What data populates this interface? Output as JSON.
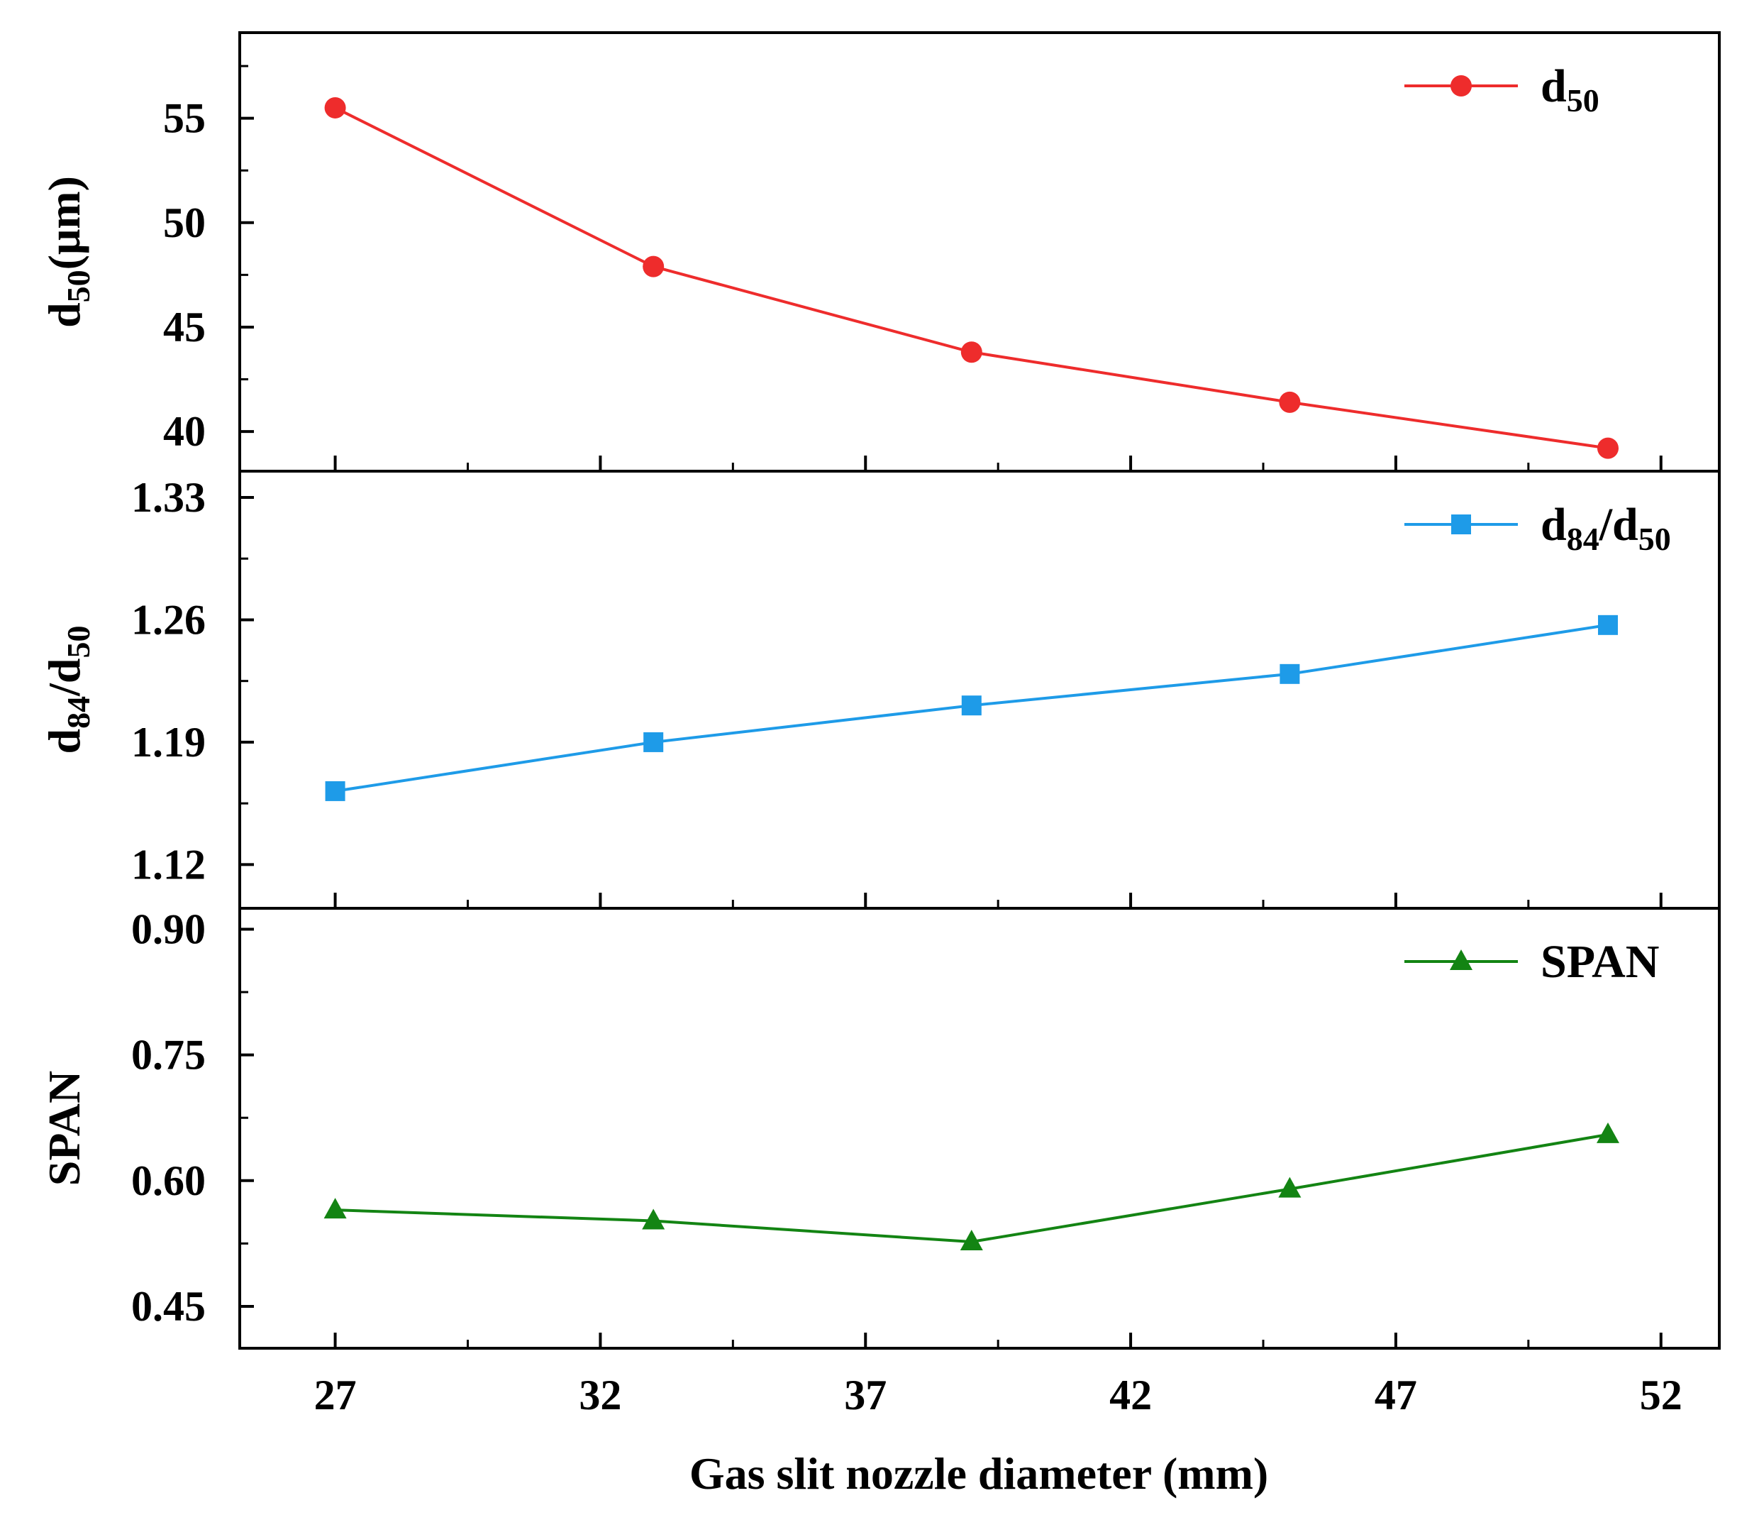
{
  "chart_data": {
    "type": "line",
    "xlabel": "Gas slit nozzle diameter (mm)",
    "x": [
      27,
      33,
      39,
      45,
      51
    ],
    "xlim": [
      25.2,
      53.1
    ],
    "x_ticks": [
      "27",
      "32",
      "37",
      "42",
      "47",
      "52"
    ],
    "x_tick_values": [
      27,
      32,
      37,
      42,
      47,
      52
    ],
    "grid": false,
    "panels": [
      {
        "id": "d50",
        "ylabel_main": "d",
        "ylabel_sub": "50",
        "ylabel_suffix": "(μm)",
        "ylim": [
          38.1,
          59.1
        ],
        "y_ticks": [
          "40",
          "45",
          "50",
          "55"
        ],
        "y_tick_values": [
          40,
          45,
          50,
          55
        ],
        "series": [
          {
            "name_main": "d",
            "name_sub": "50",
            "marker": "circle",
            "color": "#ee2c2c",
            "values": [
              55.5,
              47.9,
              43.8,
              41.4,
              39.2
            ]
          }
        ],
        "legend_position": "top-right"
      },
      {
        "id": "d84_d50",
        "ylabel_main": "d",
        "ylabel_sub": "84",
        "ylabel_mid": "/d",
        "ylabel_sub2": "50",
        "ylim": [
          1.095,
          1.345
        ],
        "y_ticks": [
          "1.12",
          "1.19",
          "1.26",
          "1.33"
        ],
        "y_tick_values": [
          1.12,
          1.19,
          1.26,
          1.33
        ],
        "series": [
          {
            "name_main": "d",
            "name_sub": "84",
            "name_mid": "/d",
            "name_sub2": "50",
            "marker": "square",
            "color": "#1e9be8",
            "values": [
              1.162,
              1.19,
              1.211,
              1.229,
              1.257
            ]
          }
        ],
        "legend_position": "top-right"
      },
      {
        "id": "span",
        "ylabel_main": "SPAN",
        "ylim": [
          0.4,
          0.925
        ],
        "y_ticks": [
          "0.45",
          "0.60",
          "0.75",
          "0.90"
        ],
        "y_tick_values": [
          0.45,
          0.6,
          0.75,
          0.9
        ],
        "series": [
          {
            "name_main": "SPAN",
            "marker": "triangle",
            "color": "#138413",
            "values": [
              0.565,
              0.552,
              0.527,
              0.59,
              0.655
            ]
          }
        ],
        "legend_position": "top-right"
      }
    ]
  }
}
